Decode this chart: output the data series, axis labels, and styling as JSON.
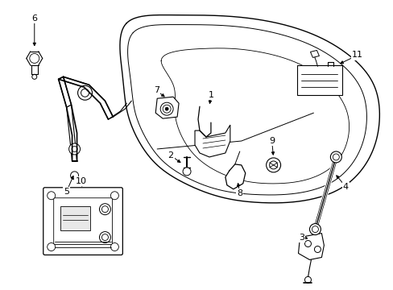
{
  "background_color": "#ffffff",
  "line_color": "#000000",
  "fig_width": 4.89,
  "fig_height": 3.6,
  "dpi": 100,
  "label_font_size": 8.0
}
